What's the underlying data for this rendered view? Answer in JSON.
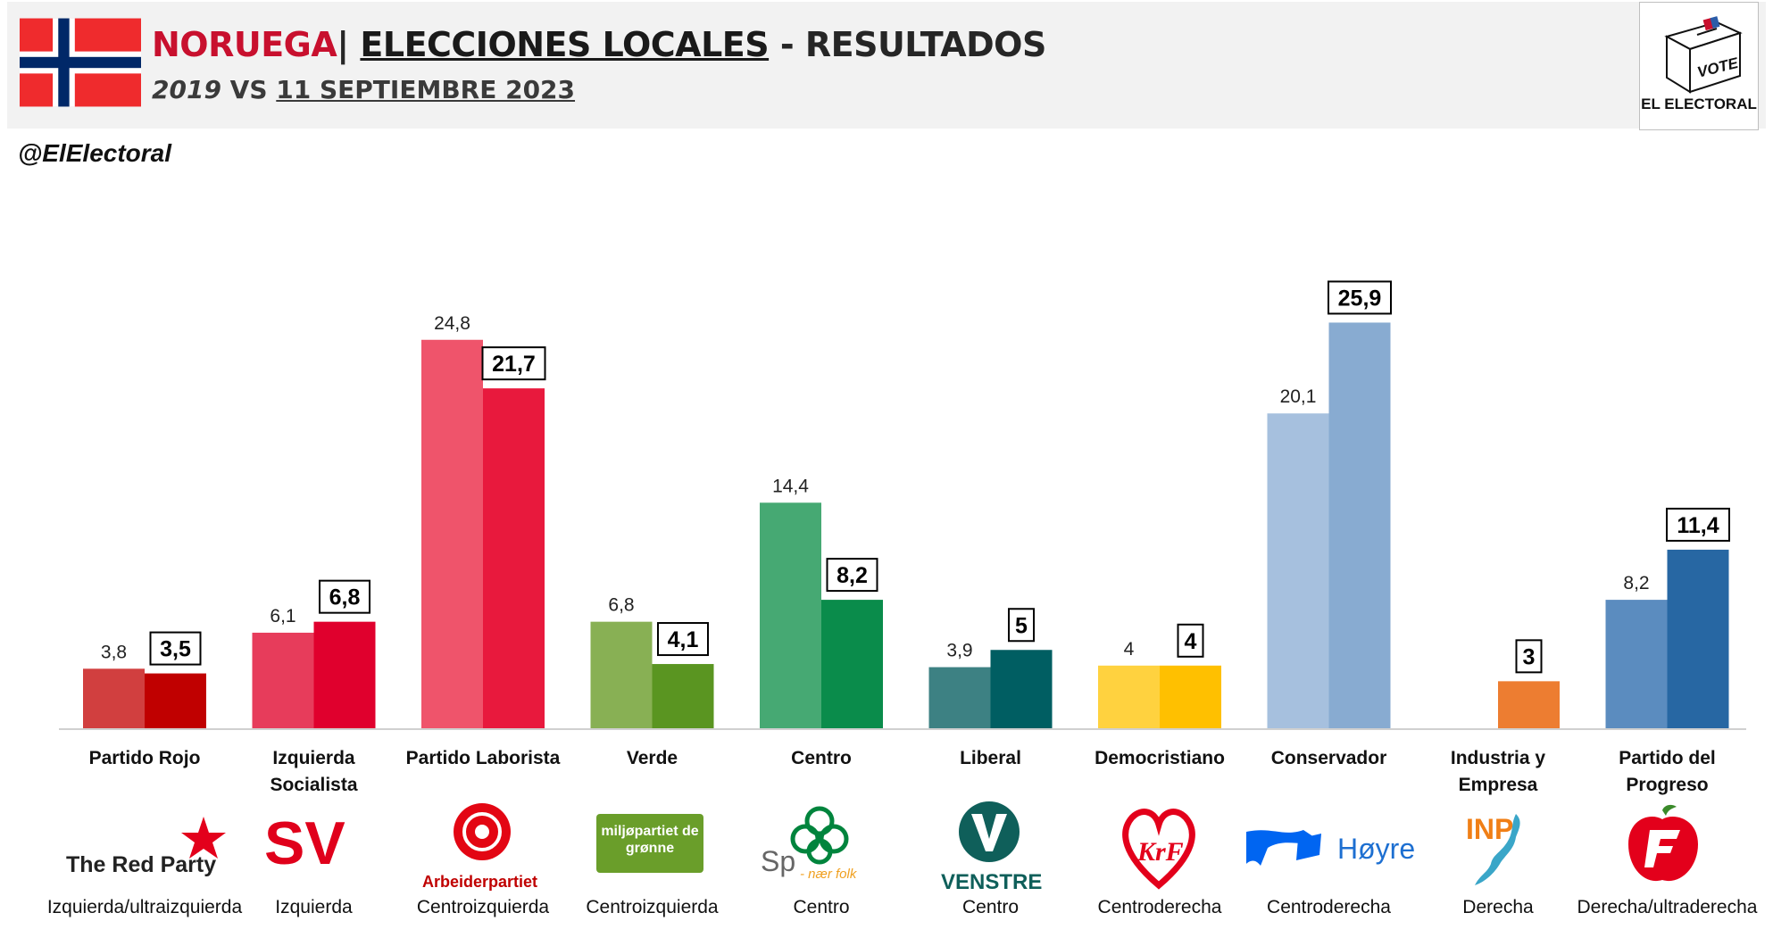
{
  "header": {
    "country": "NORUEGA",
    "separator": "|",
    "title_main": "ELECCIONES LOCALES",
    "title_rest": " - RESULTADOS",
    "subtitle_year": "2019",
    "subtitle_vs": " VS ",
    "subtitle_date": "11 SEPTIEMBRE 2023",
    "logo_vote": "VOTE",
    "logo_caption": "EL ELECTORAL"
  },
  "handle": "@ElElectoral",
  "chart_data": {
    "type": "bar",
    "title": "NORUEGA| ELECCIONES LOCALES - RESULTADOS",
    "categories": [
      "Partido Rojo",
      "Izquierda Socialista",
      "Partido Laborista",
      "Verde",
      "Centro",
      "Liberal",
      "Democristiano",
      "Conservador",
      "Industria y Empresa",
      "Partido del Progreso"
    ],
    "category_lines": [
      [
        "Partido Rojo"
      ],
      [
        "Izquierda",
        "Socialista"
      ],
      [
        "Partido Laborista"
      ],
      [
        "Verde"
      ],
      [
        "Centro"
      ],
      [
        "Liberal"
      ],
      [
        "Democristiano"
      ],
      [
        "Conservador"
      ],
      [
        "Industria y",
        "Empresa"
      ],
      [
        "Partido del",
        "Progreso"
      ]
    ],
    "series": [
      {
        "name": "2019",
        "values": [
          3.8,
          6.1,
          24.8,
          6.8,
          14.4,
          3.9,
          4,
          20.1,
          null,
          8.2
        ],
        "labels": [
          "3,8",
          "6,1",
          "24,8",
          "6,8",
          "14,4",
          "3,9",
          "4",
          "20,1",
          "",
          "8,2"
        ],
        "colors": [
          "#d13f3f",
          "#e73c5b",
          "#ef546b",
          "#88b054",
          "#46a973",
          "#3d8183",
          "#ffd23f",
          "#a6c0de",
          "#f4a46b",
          "#5b8cbf"
        ]
      },
      {
        "name": "2023",
        "values": [
          3.5,
          6.8,
          21.7,
          4.1,
          8.2,
          5,
          4,
          25.9,
          3,
          11.4
        ],
        "labels": [
          "3,5",
          "6,8",
          "21,7",
          "4,1",
          "8,2",
          "5",
          "4",
          "25,9",
          "3",
          "11,4"
        ],
        "colors": [
          "#c00000",
          "#e0002d",
          "#e8193d",
          "#5a9521",
          "#0a8c4b",
          "#005e62",
          "#ffc000",
          "#88abd1",
          "#ed7d31",
          "#2767a3"
        ]
      }
    ],
    "ylim": [
      0,
      28
    ],
    "grid": false,
    "legend": "none",
    "ideologies": [
      "Izquierda/ultraizquierda",
      "Izquierda",
      "Centroizquierda",
      "Centroizquierda",
      "Centro",
      "Centro",
      "Centroderecha",
      "Centroderecha",
      "Derecha",
      "Derecha/ultraderecha"
    ]
  },
  "party_logos": [
    {
      "text": "The Red Party",
      "icon": "red-star-icon",
      "color": "#e3001b"
    },
    {
      "text": "SV",
      "icon": "sv-logo",
      "color": "#e0001b"
    },
    {
      "text": "Arbeiderpartiet",
      "icon": "rose-icon",
      "color": "#e30613"
    },
    {
      "text": "miljøpartiet de grønne",
      "icon": "mdg-logo",
      "color": "#6a9e2a"
    },
    {
      "text": "Sp",
      "subtext": "- nær folk",
      "icon": "clover-icon",
      "color": "#00843d"
    },
    {
      "text": "VENSTRE",
      "icon": "venstre-v-icon",
      "color": "#0f5f5a"
    },
    {
      "text": "KrF",
      "icon": "krf-heart-icon",
      "color": "#e3001b"
    },
    {
      "text": "Høyre",
      "icon": "hoyre-flag-icon",
      "color": "#0065f1"
    },
    {
      "text": "INP",
      "icon": "norway-map-icon",
      "color": "#f07f16"
    },
    {
      "text": "F",
      "icon": "frp-apple-icon",
      "color": "#e3001b"
    }
  ]
}
